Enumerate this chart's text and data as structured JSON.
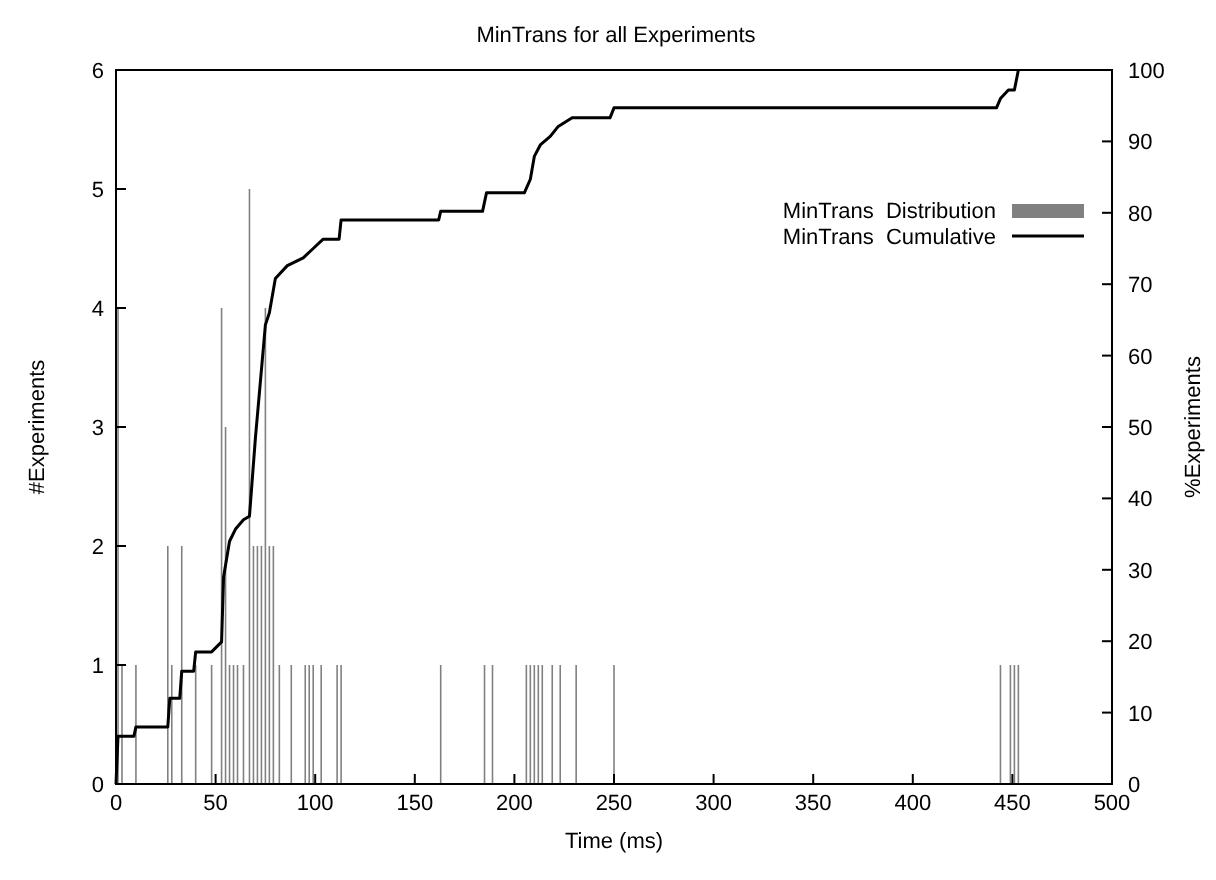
{
  "chart_data": {
    "type": "bar",
    "title": "MinTrans for all Experiments",
    "xlabel": "Time (ms)",
    "ylabel": "#Experiments",
    "y2label": "%Experiments",
    "xlim": [
      0,
      500
    ],
    "xticks": [
      0,
      50,
      100,
      150,
      200,
      250,
      300,
      350,
      400,
      450,
      500
    ],
    "ylim": [
      0,
      6
    ],
    "yticks": [
      0,
      1,
      2,
      3,
      4,
      5,
      6
    ],
    "y2lim": [
      0,
      100
    ],
    "y2ticks": [
      0,
      10,
      20,
      30,
      40,
      50,
      60,
      70,
      80,
      90,
      100
    ],
    "legend": "top right",
    "grid": false,
    "series": [
      {
        "name": "MinTrans  Distribution",
        "color": "#808080",
        "x": [
          1,
          3,
          10,
          26,
          28,
          33,
          40,
          48,
          53,
          55,
          57,
          59,
          61,
          64,
          67,
          69,
          71,
          73,
          75,
          77,
          79,
          82,
          88,
          95,
          97,
          99,
          103,
          111,
          113,
          163,
          185,
          189,
          206,
          208,
          210,
          212,
          214,
          219,
          223,
          231,
          250,
          444,
          449,
          451,
          453
        ],
        "values": [
          4,
          1,
          1,
          2,
          1,
          2,
          1,
          1,
          4,
          3,
          1,
          1,
          1,
          1,
          5,
          2,
          2,
          2,
          4,
          2,
          2,
          1,
          1,
          1,
          1,
          1,
          1,
          1,
          1,
          1,
          1,
          1,
          1,
          1,
          1,
          1,
          1,
          1,
          1,
          1,
          1,
          1,
          1,
          1,
          1
        ]
      },
      {
        "name": "MinTrans  Cumulative",
        "type": "line",
        "axis": "y2",
        "color": "#000000",
        "x": [
          0,
          1,
          9,
          10,
          26,
          27,
          32,
          33,
          39,
          40,
          48,
          53,
          54,
          57,
          60,
          64,
          67,
          70,
          75,
          77,
          80,
          86,
          94,
          99,
          104,
          112,
          113,
          162,
          163,
          184,
          186,
          205,
          208,
          210,
          213,
          218,
          222,
          229,
          248,
          250,
          442,
          444,
          448,
          451,
          453
        ],
        "values": [
          0,
          6.7,
          6.7,
          8,
          8,
          12,
          12,
          15.8,
          15.8,
          18.5,
          18.5,
          19.9,
          29,
          34,
          35.7,
          37,
          37.5,
          48.5,
          64.3,
          66,
          70.8,
          72.6,
          73.7,
          75,
          76.3,
          76.3,
          79,
          79,
          80.2,
          80.2,
          82.8,
          82.8,
          84.7,
          87.9,
          89.5,
          90.7,
          92.1,
          93.3,
          93.3,
          94.7,
          94.7,
          96,
          97.2,
          97.2,
          100
        ]
      }
    ]
  }
}
